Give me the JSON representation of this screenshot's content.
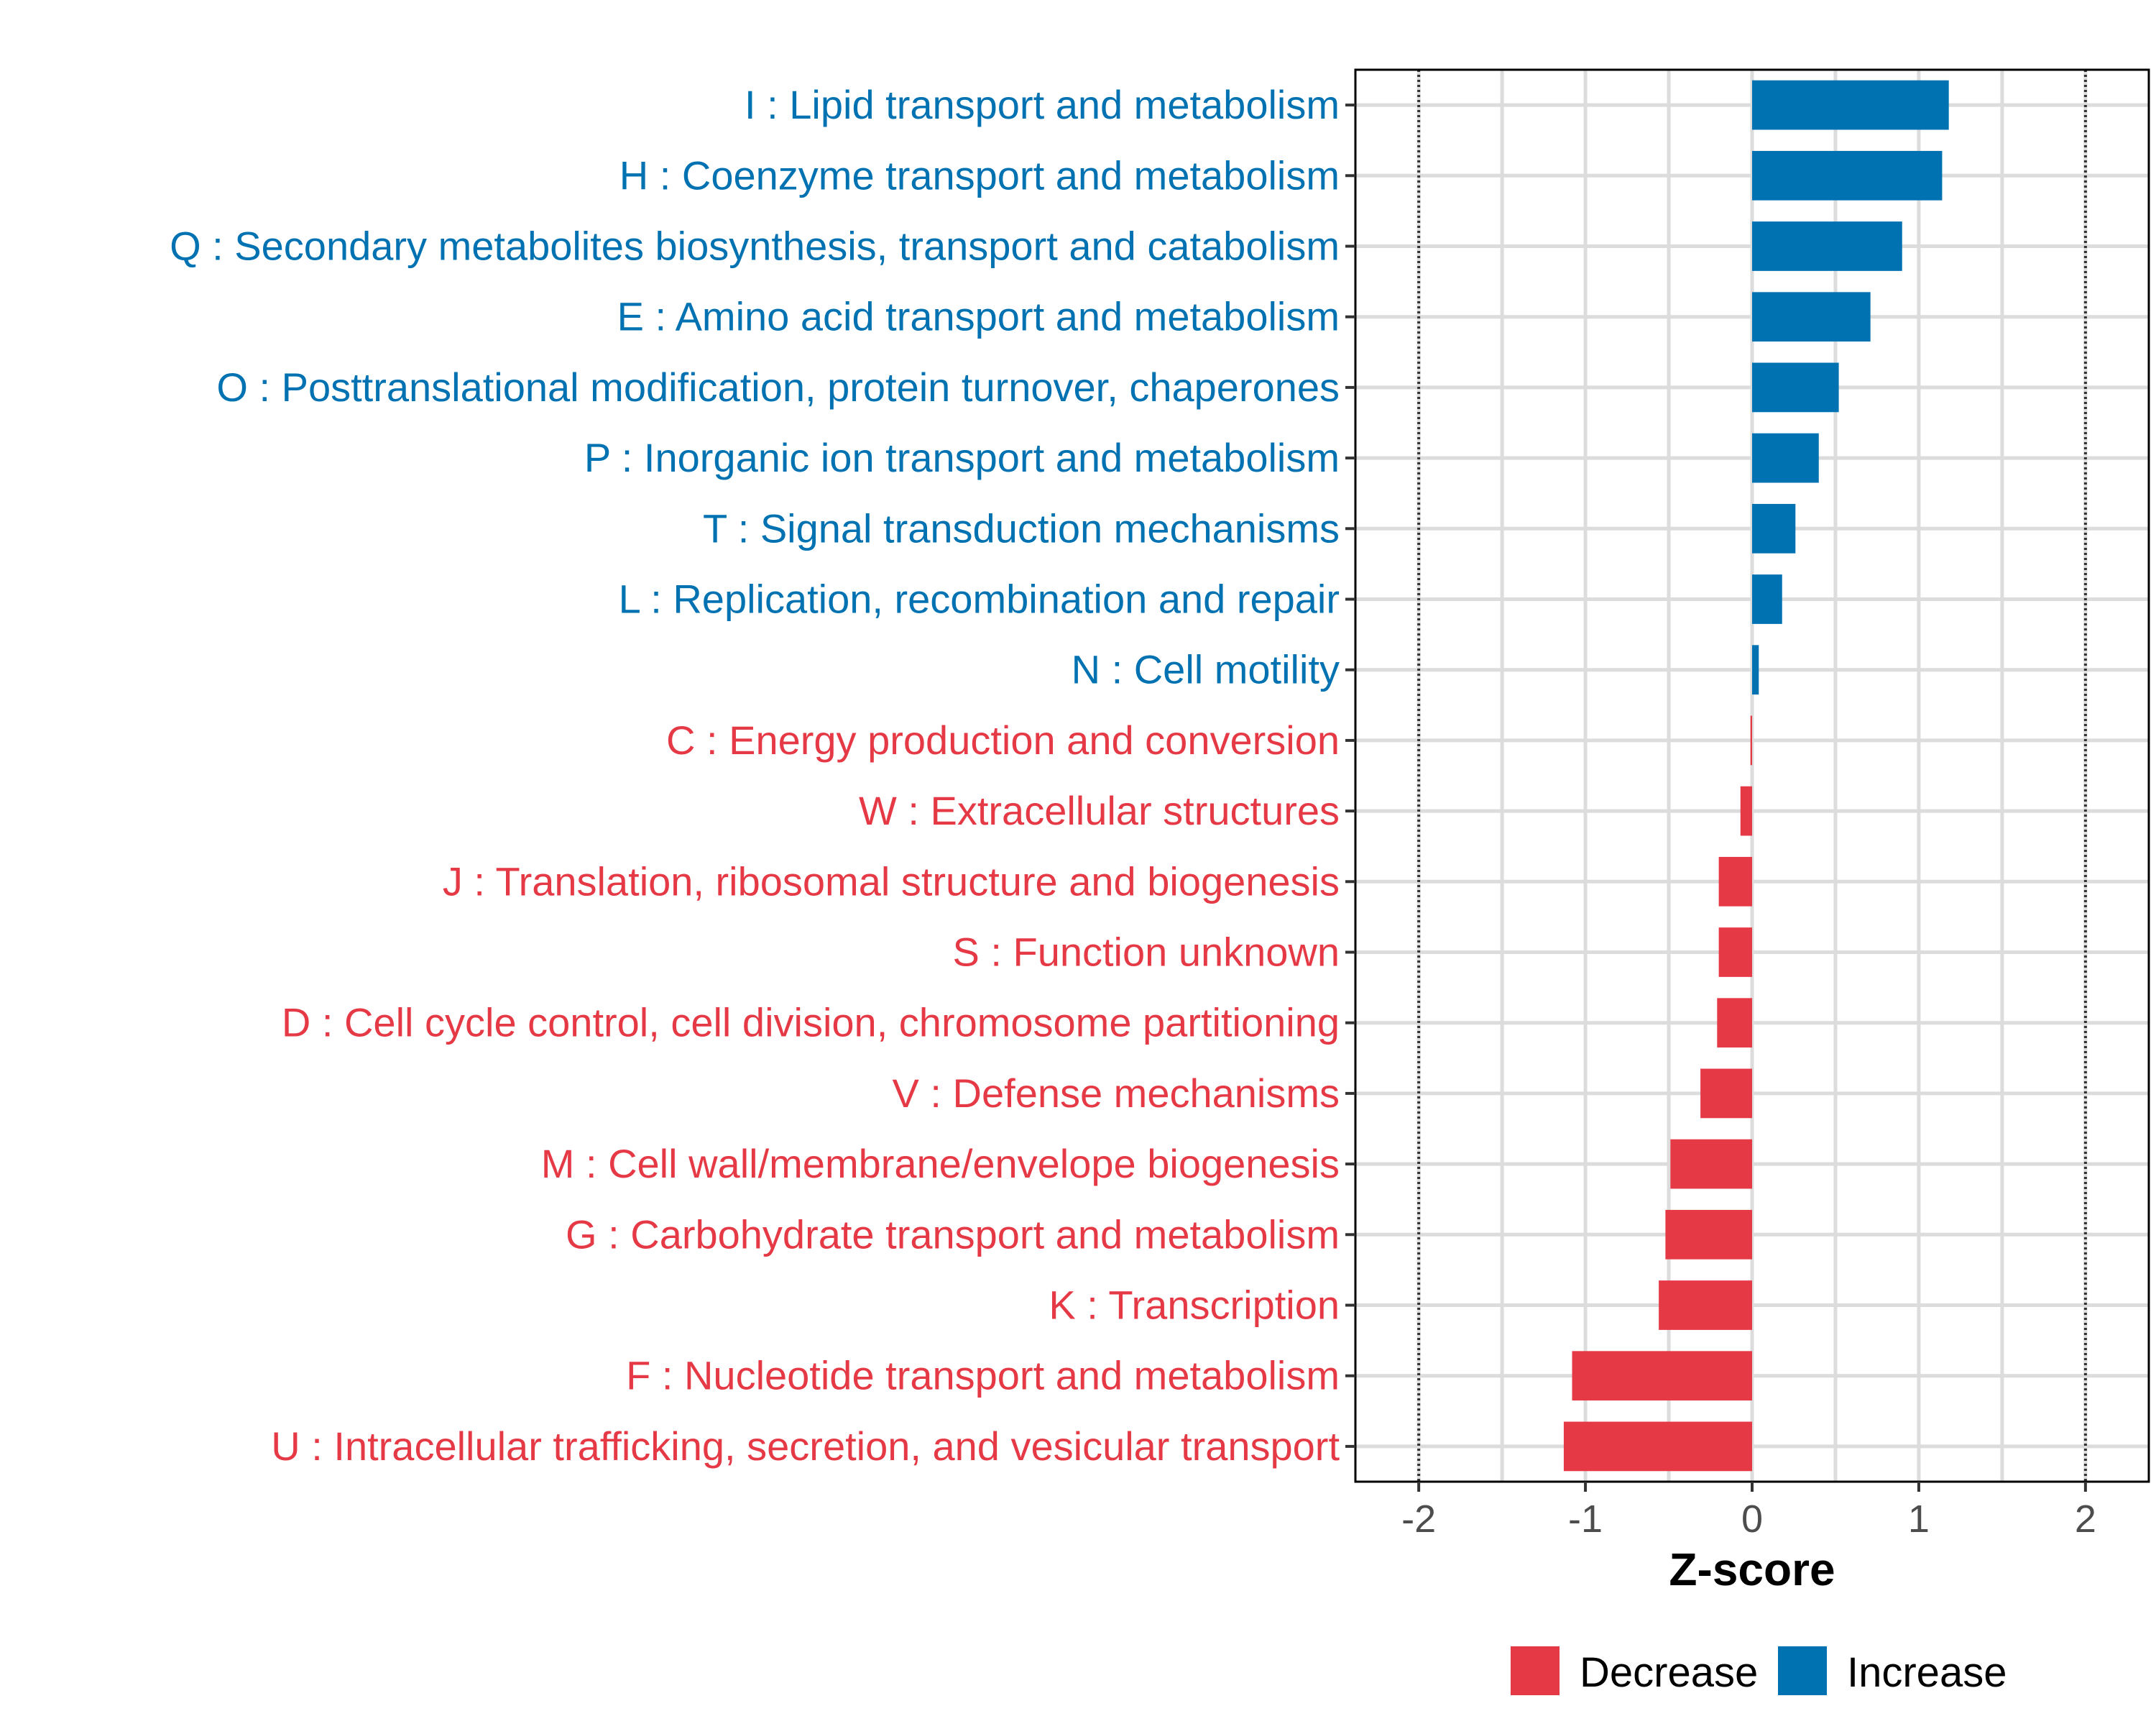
{
  "chart_data": {
    "type": "bar",
    "orientation": "horizontal",
    "xlabel": "Z-score",
    "xlim": [
      -2.38,
      2.38
    ],
    "xticks": [
      -2,
      -1,
      0,
      1,
      2
    ],
    "xtick_labels": [
      "-2",
      "-1",
      "0",
      "1",
      "2"
    ],
    "threshold_lines": [
      -2,
      2
    ],
    "colors": {
      "Increase": "#0072b2",
      "Decrease": "#e63946"
    },
    "grid": true,
    "legend_position": "bottom",
    "legend": [
      {
        "name": "Decrease",
        "color": "#e63946"
      },
      {
        "name": "Increase",
        "color": "#0072b2"
      }
    ],
    "categories": [
      "I : Lipid transport and metabolism",
      "H : Coenzyme transport and metabolism",
      "Q : Secondary metabolites biosynthesis, transport and catabolism",
      "E : Amino acid transport and metabolism",
      "O : Posttranslational modification, protein turnover, chaperones",
      "P : Inorganic ion transport and metabolism",
      "T : Signal transduction mechanisms",
      "L : Replication, recombination and repair",
      "N : Cell motility",
      "C : Energy production and conversion",
      "W : Extracellular structures",
      "J : Translation, ribosomal structure and biogenesis",
      "S : Function unknown",
      "D : Cell cycle control, cell division, chromosome partitioning",
      "V : Defense mechanisms",
      "M : Cell wall/membrane/envelope biogenesis",
      "G : Carbohydrate transport and metabolism",
      "K : Transcription",
      "F : Nucleotide transport and metabolism",
      "U : Intracellular trafficking, secretion, and vesicular transport"
    ],
    "values": [
      1.18,
      1.14,
      0.9,
      0.71,
      0.52,
      0.4,
      0.26,
      0.18,
      0.04,
      -0.01,
      -0.07,
      -0.2,
      -0.2,
      -0.21,
      -0.31,
      -0.49,
      -0.52,
      -0.56,
      -1.08,
      -1.13
    ],
    "direction": [
      "Increase",
      "Increase",
      "Increase",
      "Increase",
      "Increase",
      "Increase",
      "Increase",
      "Increase",
      "Increase",
      "Decrease",
      "Decrease",
      "Decrease",
      "Decrease",
      "Decrease",
      "Decrease",
      "Decrease",
      "Decrease",
      "Decrease",
      "Decrease",
      "Decrease"
    ]
  }
}
